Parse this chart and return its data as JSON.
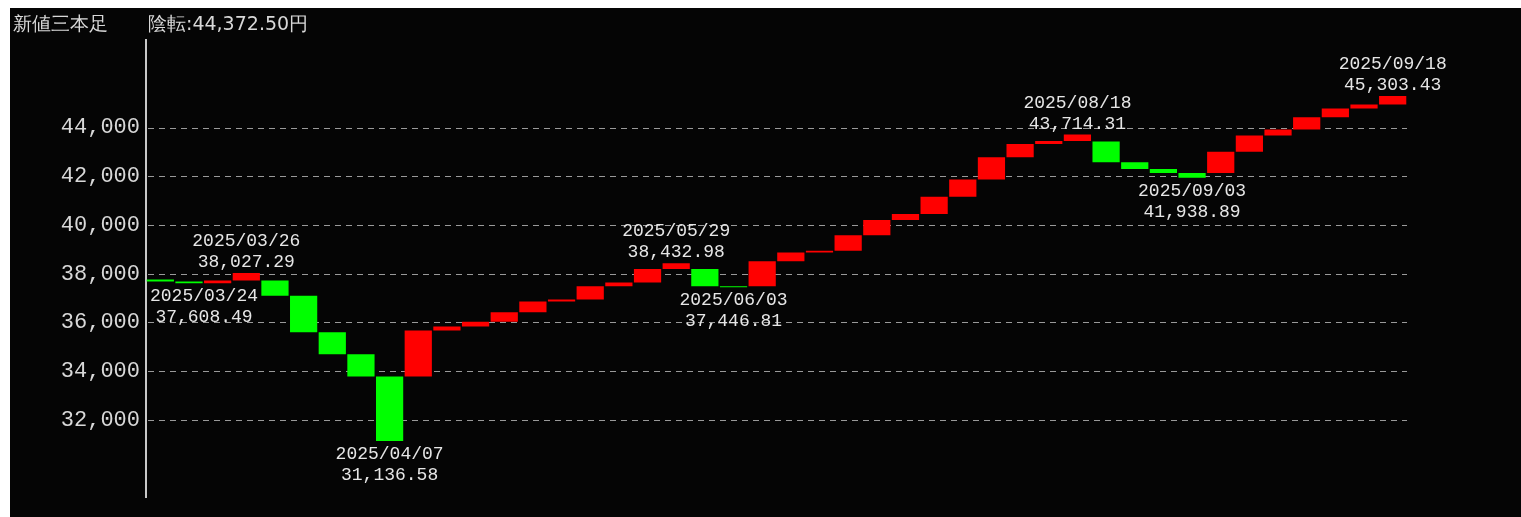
{
  "chart_data": {
    "type": "bar",
    "title": "新値三本足",
    "subtitle": "陰転:44,372.50円",
    "categories": [
      null,
      null,
      null,
      null,
      null,
      null,
      null,
      null,
      null,
      null,
      null,
      null,
      null,
      null,
      null,
      null,
      null,
      null,
      null,
      null,
      null,
      null,
      null,
      null,
      null,
      null,
      null,
      null,
      null,
      null,
      null,
      null,
      null,
      null,
      null,
      null,
      null,
      null,
      null,
      null,
      null,
      null,
      null,
      null
    ],
    "base": [
      37760,
      37680,
      37610,
      37720,
      37720,
      37100,
      35600,
      34690,
      33780,
      33780,
      35670,
      35830,
      36030,
      36420,
      36860,
      36940,
      37490,
      37640,
      38200,
      38200,
      37490,
      37490,
      38510,
      38870,
      38950,
      39580,
      40210,
      40450,
      41160,
      41870,
      42780,
      43330,
      43450,
      43430,
      42580,
      42300,
      42140,
      42140,
      43010,
      43680,
      43920,
      44430,
      44790,
      44950
    ],
    "values": [
      -80,
      -71.51,
      110,
      307.29,
      -620,
      -1500,
      -910,
      -910,
      -2643.42,
      1890,
      160,
      200,
      390,
      440,
      80,
      550,
      150,
      560,
      232.98,
      -710,
      -43.19,
      1020,
      360,
      80,
      630,
      630,
      240,
      710,
      710,
      910,
      550,
      120,
      264.31,
      -850,
      -280,
      -160,
      -201.11,
      870,
      670,
      240,
      510,
      360,
      160,
      353.43
    ],
    "colors": [
      "#00ff00",
      "#00ff00",
      "#ff0000",
      "#ff0000",
      "#00ff00",
      "#00ff00",
      "#00ff00",
      "#00ff00",
      "#00ff00",
      "#ff0000",
      "#ff0000",
      "#ff0000",
      "#ff0000",
      "#ff0000",
      "#ff0000",
      "#ff0000",
      "#ff0000",
      "#ff0000",
      "#ff0000",
      "#00ff00",
      "#00ff00",
      "#ff0000",
      "#ff0000",
      "#ff0000",
      "#ff0000",
      "#ff0000",
      "#ff0000",
      "#ff0000",
      "#ff0000",
      "#ff0000",
      "#ff0000",
      "#ff0000",
      "#ff0000",
      "#00ff00",
      "#00ff00",
      "#00ff00",
      "#00ff00",
      "#ff0000",
      "#ff0000",
      "#ff0000",
      "#ff0000",
      "#ff0000",
      "#ff0000",
      "#ff0000"
    ],
    "value_labels": [
      null,
      "2025/03/24\n37,608.49",
      null,
      "2025/03/26\n38,027.29",
      null,
      null,
      null,
      null,
      "2025/04/07\n31,136.58",
      null,
      null,
      null,
      null,
      null,
      null,
      null,
      null,
      null,
      "2025/05/29\n38,432.98",
      null,
      "2025/06/03\n37,446.81",
      null,
      null,
      null,
      null,
      null,
      null,
      null,
      null,
      null,
      null,
      null,
      "2025/08/18\n43,714.31",
      null,
      null,
      null,
      "2025/09/03\n41,938.89",
      null,
      null,
      null,
      null,
      null,
      null,
      "2025/09/18\n45,303.43"
    ],
    "ylim": [
      28800,
      47600
    ],
    "yticks": [
      {
        "value": 32000,
        "label": "32,000"
      },
      {
        "value": 34000,
        "label": "34,000"
      },
      {
        "value": 36000,
        "label": "36,000"
      },
      {
        "value": 38000,
        "label": "38,000"
      },
      {
        "value": 40000,
        "label": "40,000"
      },
      {
        "value": 42000,
        "label": "42,000"
      },
      {
        "value": 44000,
        "label": "44,000"
      }
    ],
    "grid": "y",
    "legend": false
  }
}
